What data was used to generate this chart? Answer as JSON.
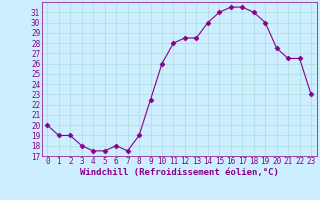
{
  "x": [
    0,
    1,
    2,
    3,
    4,
    5,
    6,
    7,
    8,
    9,
    10,
    11,
    12,
    13,
    14,
    15,
    16,
    17,
    18,
    19,
    20,
    21,
    22,
    23
  ],
  "y": [
    20,
    19,
    19,
    18,
    17.5,
    17.5,
    18,
    17.5,
    19,
    22.5,
    26,
    28,
    28.5,
    28.5,
    30,
    31,
    31.5,
    31.5,
    31,
    30,
    27.5,
    26.5,
    26.5,
    23
  ],
  "line_color": "#880088",
  "marker": "D",
  "marker_size": 2.5,
  "bg_color": "#cceeff",
  "grid_color": "#aadddd",
  "xlabel": "Windchill (Refroidissement éolien,°C)",
  "xlabel_fontsize": 6.5,
  "ylim": [
    17,
    32
  ],
  "xlim": [
    -0.5,
    23.5
  ],
  "yticks": [
    17,
    18,
    19,
    20,
    21,
    22,
    23,
    24,
    25,
    26,
    27,
    28,
    29,
    30,
    31
  ],
  "xticks": [
    0,
    1,
    2,
    3,
    4,
    5,
    6,
    7,
    8,
    9,
    10,
    11,
    12,
    13,
    14,
    15,
    16,
    17,
    18,
    19,
    20,
    21,
    22,
    23
  ],
  "tick_fontsize": 5.5,
  "tick_color": "#880088",
  "spine_color": "#880088",
  "line_width": 0.8
}
